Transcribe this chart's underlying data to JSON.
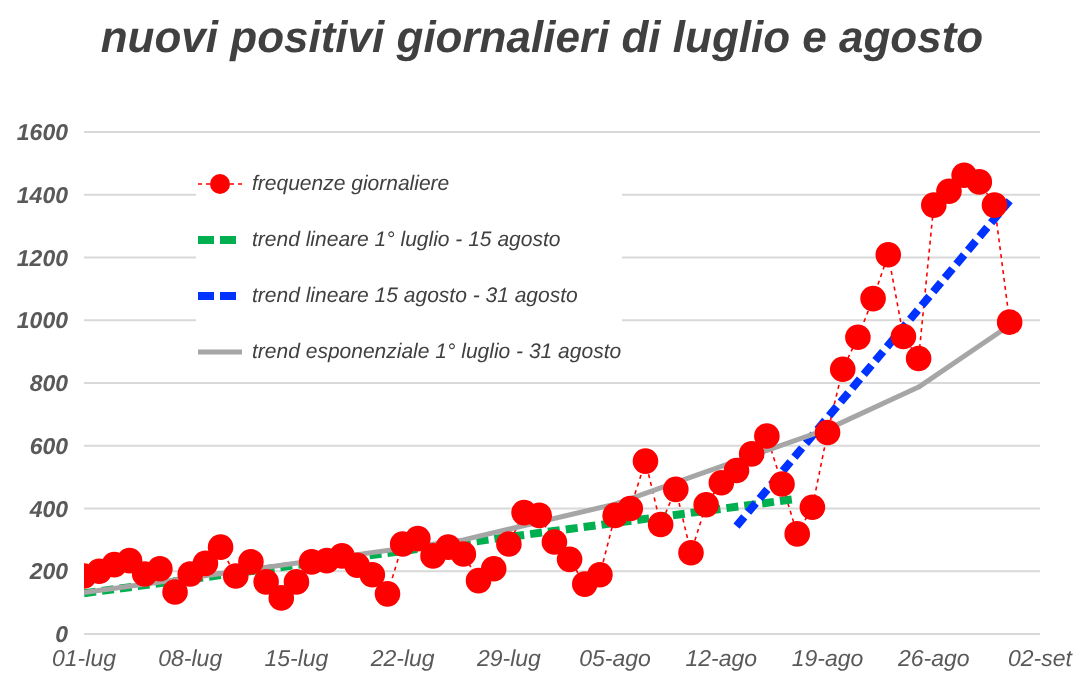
{
  "chart_data": {
    "type": "line",
    "title": "nuovi positivi giornalieri di luglio e agosto",
    "x": [
      "--07-01",
      "--07-02",
      "--07-03",
      "--07-04",
      "--07-05",
      "--07-06",
      "--07-07",
      "--07-08",
      "--07-09",
      "--07-10",
      "--07-11",
      "--07-12",
      "--07-13",
      "--07-14",
      "--07-15",
      "--07-16",
      "--07-17",
      "--07-18",
      "--07-19",
      "--07-20",
      "--07-21",
      "--07-22",
      "--07-23",
      "--07-24",
      "--07-25",
      "--07-26",
      "--07-27",
      "--07-28",
      "--07-29",
      "--07-30",
      "--07-31",
      "--08-01",
      "--08-02",
      "--08-03",
      "--08-04",
      "--08-05",
      "--08-06",
      "--08-07",
      "--08-08",
      "--08-09",
      "--08-10",
      "--08-11",
      "--08-12",
      "--08-13",
      "--08-14",
      "--08-15",
      "--08-16",
      "--08-17",
      "--08-18",
      "--08-19",
      "--08-20",
      "--08-21",
      "--08-22",
      "--08-23",
      "--08-24",
      "--08-25",
      "--08-26",
      "--08-27",
      "--08-28",
      "--08-29",
      "--08-30",
      "--08-31"
    ],
    "series": [
      {
        "name": "frequenze giornaliere",
        "color": "#ff0000",
        "marker": "circle",
        "line_style": "dotted",
        "values": [
          185,
          200,
          221,
          234,
          191,
          208,
          134,
          191,
          225,
          277,
          185,
          230,
          166,
          115,
          166,
          230,
          234,
          249,
          219,
          189,
          128,
          287,
          304,
          249,
          277,
          255,
          170,
          208,
          287,
          387,
          378,
          293,
          238,
          159,
          189,
          378,
          400,
          551,
          349,
          461,
          259,
          412,
          482,
          521,
          574,
          631,
          478,
          319,
          404,
          642,
          844,
          946,
          1069,
          1209,
          948,
          878,
          1367,
          1411,
          1462,
          1441,
          1367,
          994
        ]
      },
      {
        "name": "trend lineare 1° luglio - 15 agosto",
        "color": "#00b050",
        "type": "line",
        "marker": "none",
        "line_style": "dashed",
        "x": [
          "--07-01",
          "--08-17"
        ],
        "values": [
          130,
          431
        ]
      },
      {
        "name": "trend lineare 15 agosto - 31 agosto",
        "color": "#0033ff",
        "type": "line",
        "marker": "none",
        "line_style": "dashed",
        "x": [
          "--08-13",
          "--08-31"
        ],
        "values": [
          344,
          1381
        ]
      },
      {
        "name": "trend esponenziale 1° luglio - 31 agosto",
        "color": "#a6a6a6",
        "type": "line",
        "marker": "none",
        "line_style": "solid",
        "x": [
          "--07-01",
          "--07-26",
          "--08-05",
          "--08-10",
          "--08-19",
          "--08-25",
          "--08-31"
        ],
        "values": [
          132,
          300,
          414,
          500,
          653,
          787,
          984
        ]
      }
    ],
    "xlim": [
      "--07-01",
      "--09-02"
    ],
    "xticks": [
      {
        "value": "--07-01",
        "label": "01-lug"
      },
      {
        "value": "--07-08",
        "label": "08-lug"
      },
      {
        "value": "--07-15",
        "label": "15-lug"
      },
      {
        "value": "--07-22",
        "label": "22-lug"
      },
      {
        "value": "--07-29",
        "label": "29-lug"
      },
      {
        "value": "--08-05",
        "label": "05-ago"
      },
      {
        "value": "--08-12",
        "label": "12-ago"
      },
      {
        "value": "--08-19",
        "label": "19-ago"
      },
      {
        "value": "--08-26",
        "label": "26-ago"
      },
      {
        "value": "--09-02",
        "label": "02-set"
      }
    ],
    "ylim": [
      0,
      1600
    ],
    "yticks": [
      0,
      200,
      400,
      600,
      800,
      1000,
      1200,
      1400,
      1600
    ],
    "grid": "y",
    "legend": "top left"
  }
}
